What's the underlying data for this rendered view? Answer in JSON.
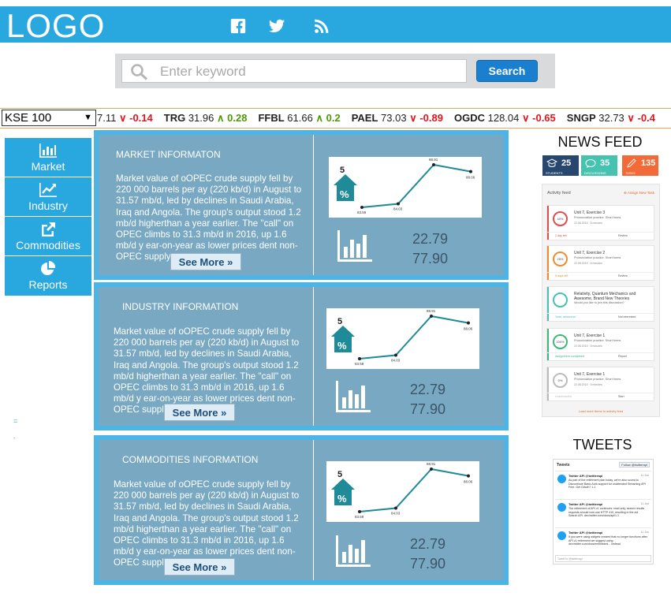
{
  "header": {
    "logo": "LOGO",
    "social": [
      "facebook-icon",
      "twitter-icon",
      "rss-icon"
    ],
    "accent": "#29a8e0"
  },
  "search": {
    "placeholder": "Enter keyword",
    "button": "Search"
  },
  "ticker": {
    "index": "KSE 100",
    "items": [
      {
        "sym": "",
        "price": "7.11",
        "chg": "-0.14",
        "dir": "down"
      },
      {
        "sym": "TRG",
        "price": "31.96",
        "chg": "0.28",
        "dir": "up"
      },
      {
        "sym": "FFBL",
        "price": "61.66",
        "chg": "0.2",
        "dir": "up"
      },
      {
        "sym": "PAEL",
        "price": "73.03",
        "chg": "-0.89",
        "dir": "down"
      },
      {
        "sym": "OGDC",
        "price": "128.04",
        "chg": "-0.65",
        "dir": "down"
      },
      {
        "sym": "SNGP",
        "price": "32.73",
        "chg": "-0.4",
        "dir": "down"
      }
    ]
  },
  "sidebar": {
    "items": [
      {
        "label": "Market",
        "icon": "bar-chart-icon"
      },
      {
        "label": "Industry",
        "icon": "line-chart-icon"
      },
      {
        "label": "Commodities",
        "icon": "external-link-icon"
      },
      {
        "label": "Reports",
        "icon": "pie-chart-icon"
      }
    ]
  },
  "panels": [
    {
      "title": "MARKET INFORMATON",
      "body": "Market value of oOPEC crude supply fell by 220 000 barrels per ay (220 kb/d) in August to 31.57 mb/d, led by declines in Saudi Arabia, Iraq and Angola. The group's output stood 1.2 mb/d higherthan a year earlier. The \"call\" on OPEC climbs to 31.3 mb/d in 2016,  up 1.6 mb/d y ear-on-year as lower prices dent non-OPEC supply",
      "see_more": "See More »",
      "house_number": "5",
      "house_symbol": "%",
      "value1": "22.79",
      "value2": "77.90"
    },
    {
      "title": "INDUSTRY INFORMATION",
      "body": "Market value of oOPEC crude supply fell by 220 000 barrels per ay (220 kb/d) in August to 31.57 mb/d, led by declines in Saudi Arabia, Iraq and Angola. The group's output stood 1.2 mb/d higherthan a year earlier. The \"call\" on OPEC climbs to 31.3 mb/d in 2016, up 1.6 mb/d y ear-on-year as lower prices dent non-OPEC supply",
      "see_more": "See More »",
      "house_number": "5",
      "house_symbol": "%",
      "value1": "22.79",
      "value2": "77.90"
    },
    {
      "title": "COMMODITIES INFORMATION",
      "body": "Market value of oOPEC crude supply fell by 220 000 barrels per ay (220 kb/d) in August to 31.57 mb/d, led by declines in Saudi Arabia, Iraq and Angola. The group's output stood 1.2 mb/d higherthan a year earlier. The \"call\" on OPEC climbs to 31.3 mb/d in 2016, up 1.6 mb/d y ear-on-year as lower prices dent non-OPEC supply",
      "see_more": "See More »",
      "house_number": "5",
      "house_symbol": "%",
      "value1": "22.79",
      "value2": "77.90"
    }
  ],
  "mini_chart": {
    "type": "line",
    "points": [
      {
        "label": "83.59",
        "value": 83.59
      },
      {
        "label": "84.03",
        "value": 84.03
      },
      {
        "label": "88.91",
        "value": 88.91
      },
      {
        "label": "88.06",
        "value": 88.06
      }
    ],
    "color": "#1f8a98"
  },
  "news": {
    "title": "NEWS FEED",
    "stats": [
      {
        "value": "25",
        "label": "STUDENTS",
        "color": "#27476f"
      },
      {
        "value": "35",
        "label": "DISCUSSIONS",
        "color": "#46c2b0"
      },
      {
        "value": "135",
        "label": "TASKS",
        "color": "#f26a38"
      }
    ],
    "feed_title": "Activity feed",
    "assign": "Assign New Task",
    "cards": [
      {
        "title": "Unit 7, Exercise 3",
        "sub": "Pronunciation practice. Short forms",
        "meta": "22.08.2015 · 8 minutes",
        "pct": "40%",
        "left": "1 day left",
        "right": "Review",
        "color": "#e24c4c"
      },
      {
        "title": "Unit 7, Exercise 2",
        "sub": "Pronunciation practice. Short forms",
        "meta": "22.08.2015 · 8 minutes",
        "pct": "25%",
        "left": "5 days left",
        "right": "Review",
        "color": "#f08c2e"
      },
      {
        "title": "Relativity, Quantum Mechanics and Awesome, Brand New Theories",
        "sub": "Would you like to join this discussion?",
        "meta": "",
        "pct": "",
        "left": "Yeah, awesome!",
        "right": "Not interested",
        "color": "#46c2b0"
      },
      {
        "title": "Unit 7, Exercise 1",
        "sub": "Pronunciation practice. Short forms",
        "meta": "22.08.2015 · 8 minutes",
        "pct": "100%",
        "left": "Assignment completed!",
        "right": "Report",
        "color": "#3cb878"
      },
      {
        "title": "Unit 7, Exercise 1",
        "sub": "Pronunciation practice. Short forms",
        "meta": "22.08.2015 · 8 minutes",
        "pct": "0%",
        "left": "Unscheduled",
        "right": "Start",
        "color": "#bbbbbb"
      }
    ],
    "feed_footer": "Load more items to activity feed"
  },
  "tweets": {
    "title": "TWEETS",
    "widget_title": "Tweets",
    "follow": "Follow @twitterapi",
    "items": [
      {
        "name": "Twitter API @twitterapi",
        "time": "11 Jun",
        "text": "As part of the retirement plan today, we're also sound to Discontinue Basic Auth support for unattended Streaming API Free. Get OAuth? 1.1"
      },
      {
        "name": "Twitter API @twitterapi",
        "time": "11 Jun",
        "text": "The retirement of API v1 continues: read-only, search results requests should now use HTTP 410, resulting in the old Search API. dev.twitter.com/docs/api/1.1"
      },
      {
        "name": "Twitter API @twitterapi",
        "time": "11 Jun",
        "text": "If you were using widgets created that no longer functions after API v1 retirement we suggest using dev.twitter.com/docs/embedded... instead"
      }
    ],
    "input_placeholder": "Tweet to @twitterapi"
  }
}
